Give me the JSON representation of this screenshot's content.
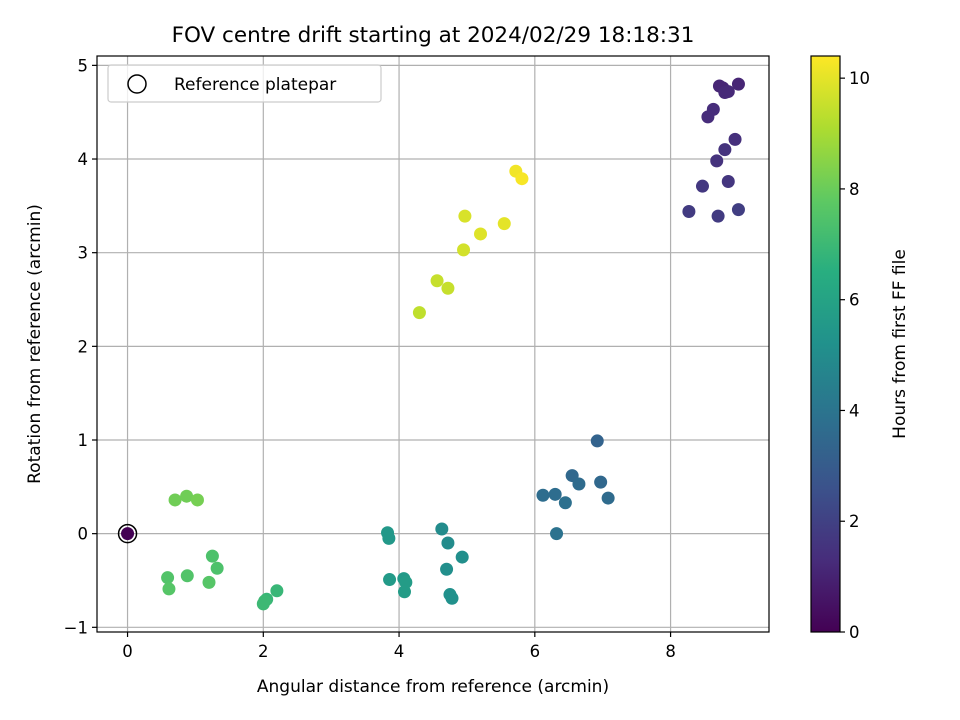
{
  "chart_data": {
    "type": "scatter",
    "title": "FOV centre drift starting at 2024/02/29 18:18:31",
    "xlabel": "Angular distance from reference (arcmin)",
    "ylabel": "Rotation from reference (arcmin)",
    "xlim": [
      -0.45,
      9.45
    ],
    "ylim": [
      -1.05,
      5.1
    ],
    "xticks": [
      0,
      2,
      4,
      6,
      8
    ],
    "yticks": [
      -1,
      0,
      1,
      2,
      3,
      4,
      5
    ],
    "grid": true,
    "legend": {
      "placement": "top-left",
      "entries": [
        "Reference platepar"
      ]
    },
    "reference": {
      "name": "Reference platepar",
      "x": 0,
      "y": 0,
      "hours": 0
    },
    "colorbar": {
      "label": "Hours from first FF file",
      "range": [
        0,
        10.4
      ],
      "ticks": [
        0,
        2,
        4,
        6,
        8,
        10
      ],
      "colormap": "viridis"
    },
    "points": [
      {
        "x": 8.72,
        "y": 4.78,
        "hours": 1.1
      },
      {
        "x": 8.77,
        "y": 4.76,
        "hours": 1.1
      },
      {
        "x": 9.0,
        "y": 4.8,
        "hours": 1.1
      },
      {
        "x": 8.8,
        "y": 4.71,
        "hours": 1.2
      },
      {
        "x": 8.85,
        "y": 4.72,
        "hours": 1.2
      },
      {
        "x": 8.63,
        "y": 4.53,
        "hours": 1.3
      },
      {
        "x": 8.55,
        "y": 4.45,
        "hours": 1.3
      },
      {
        "x": 8.95,
        "y": 4.21,
        "hours": 1.4
      },
      {
        "x": 8.8,
        "y": 4.1,
        "hours": 1.5
      },
      {
        "x": 8.68,
        "y": 3.98,
        "hours": 1.5
      },
      {
        "x": 8.85,
        "y": 3.76,
        "hours": 1.6
      },
      {
        "x": 8.47,
        "y": 3.71,
        "hours": 1.7
      },
      {
        "x": 8.27,
        "y": 3.44,
        "hours": 1.8
      },
      {
        "x": 8.7,
        "y": 3.39,
        "hours": 1.8
      },
      {
        "x": 9.0,
        "y": 3.46,
        "hours": 1.9
      },
      {
        "x": 6.92,
        "y": 0.99,
        "hours": 3.3
      },
      {
        "x": 6.55,
        "y": 0.62,
        "hours": 3.5
      },
      {
        "x": 6.97,
        "y": 0.55,
        "hours": 3.5
      },
      {
        "x": 6.65,
        "y": 0.53,
        "hours": 3.6
      },
      {
        "x": 6.12,
        "y": 0.41,
        "hours": 3.7
      },
      {
        "x": 6.3,
        "y": 0.42,
        "hours": 3.7
      },
      {
        "x": 7.08,
        "y": 0.38,
        "hours": 3.6
      },
      {
        "x": 6.45,
        "y": 0.33,
        "hours": 3.8
      },
      {
        "x": 6.32,
        "y": 0.0,
        "hours": 3.9
      },
      {
        "x": 4.63,
        "y": 0.05,
        "hours": 5.0
      },
      {
        "x": 4.72,
        "y": -0.1,
        "hours": 5.0
      },
      {
        "x": 4.93,
        "y": -0.25,
        "hours": 5.1
      },
      {
        "x": 4.7,
        "y": -0.38,
        "hours": 5.1
      },
      {
        "x": 4.75,
        "y": -0.65,
        "hours": 5.2
      },
      {
        "x": 4.78,
        "y": -0.69,
        "hours": 5.2
      },
      {
        "x": 3.83,
        "y": 0.01,
        "hours": 5.5
      },
      {
        "x": 3.85,
        "y": -0.05,
        "hours": 5.5
      },
      {
        "x": 3.86,
        "y": -0.49,
        "hours": 5.6
      },
      {
        "x": 4.07,
        "y": -0.48,
        "hours": 5.6
      },
      {
        "x": 4.1,
        "y": -0.52,
        "hours": 5.7
      },
      {
        "x": 4.08,
        "y": -0.62,
        "hours": 5.7
      },
      {
        "x": 2.2,
        "y": -0.61,
        "hours": 6.9
      },
      {
        "x": 2.05,
        "y": -0.7,
        "hours": 6.9
      },
      {
        "x": 2.02,
        "y": -0.72,
        "hours": 7.0
      },
      {
        "x": 2.0,
        "y": -0.75,
        "hours": 7.0
      },
      {
        "x": 1.25,
        "y": -0.24,
        "hours": 7.4
      },
      {
        "x": 1.32,
        "y": -0.37,
        "hours": 7.4
      },
      {
        "x": 0.59,
        "y": -0.47,
        "hours": 7.5
      },
      {
        "x": 0.88,
        "y": -0.45,
        "hours": 7.5
      },
      {
        "x": 1.2,
        "y": -0.52,
        "hours": 7.6
      },
      {
        "x": 0.61,
        "y": -0.59,
        "hours": 7.6
      },
      {
        "x": 0.7,
        "y": 0.36,
        "hours": 8.1
      },
      {
        "x": 0.87,
        "y": 0.4,
        "hours": 8.1
      },
      {
        "x": 1.03,
        "y": 0.36,
        "hours": 8.2
      },
      {
        "x": 4.3,
        "y": 2.36,
        "hours": 9.4
      },
      {
        "x": 4.56,
        "y": 2.7,
        "hours": 9.5
      },
      {
        "x": 4.72,
        "y": 2.62,
        "hours": 9.5
      },
      {
        "x": 4.95,
        "y": 3.03,
        "hours": 9.7
      },
      {
        "x": 4.97,
        "y": 3.39,
        "hours": 9.8
      },
      {
        "x": 5.2,
        "y": 3.2,
        "hours": 9.9
      },
      {
        "x": 5.55,
        "y": 3.31,
        "hours": 10.0
      },
      {
        "x": 5.72,
        "y": 3.87,
        "hours": 10.2
      },
      {
        "x": 5.81,
        "y": 3.79,
        "hours": 10.3
      }
    ]
  }
}
